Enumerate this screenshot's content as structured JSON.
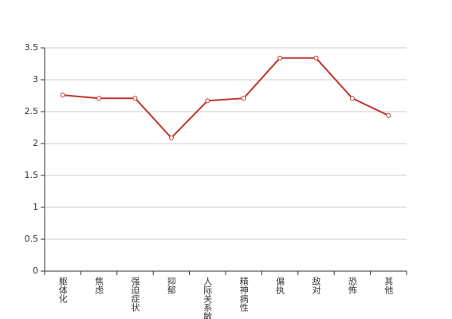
{
  "chart_data": {
    "type": "line",
    "categories": [
      "躯体化",
      "焦虑",
      "强迫症状",
      "抑郁",
      "人际关系敏感",
      "精神病性",
      "偏执",
      "敌对",
      "恐怖",
      "其他"
    ],
    "values": [
      2.76,
      2.71,
      2.71,
      2.09,
      2.67,
      2.71,
      3.34,
      3.34,
      2.71,
      2.44
    ],
    "color": "#c23531",
    "ylim": [
      0,
      3.5
    ],
    "yticks": [
      0,
      0.5,
      1,
      1.5,
      2,
      2.5,
      3,
      3.5
    ],
    "grid": true
  }
}
